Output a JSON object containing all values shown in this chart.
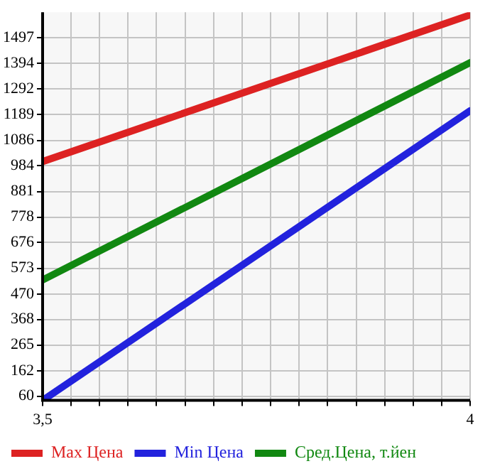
{
  "chart_data": {
    "type": "line",
    "x": [
      3.5,
      4
    ],
    "series": [
      {
        "name": "Max Цена",
        "color": "#dd2222",
        "values": [
          1001,
          1589
        ]
      },
      {
        "name": "Min Цена",
        "color": "#2222dd",
        "values": [
          43,
          1205
        ]
      },
      {
        "name": "Сред.Цена, т.йен",
        "color": "#118811",
        "values": [
          526,
          1398
        ]
      }
    ],
    "xlim": [
      3.5,
      4
    ],
    "xticks": [
      {
        "value": 3.5,
        "label": "3,5"
      },
      {
        "value": 3.5333,
        "label": null
      },
      {
        "value": 3.5667,
        "label": null
      },
      {
        "value": 3.6,
        "label": null
      },
      {
        "value": 3.6333,
        "label": null
      },
      {
        "value": 3.6667,
        "label": null
      },
      {
        "value": 3.7,
        "label": null
      },
      {
        "value": 3.7333,
        "label": null
      },
      {
        "value": 3.7667,
        "label": null
      },
      {
        "value": 3.8,
        "label": null
      },
      {
        "value": 3.8333,
        "label": null
      },
      {
        "value": 3.8667,
        "label": null
      },
      {
        "value": 3.9,
        "label": null
      },
      {
        "value": 3.9333,
        "label": null
      },
      {
        "value": 3.9667,
        "label": null
      },
      4
    ],
    "ylim": [
      43,
      1600
    ],
    "yticks": [
      60,
      162,
      265,
      368,
      470,
      573,
      676,
      778,
      881,
      984,
      1086,
      1189,
      1292,
      1394,
      1497
    ],
    "grid": true,
    "legend": "bottom",
    "marker": "none",
    "line_style": "solid"
  }
}
